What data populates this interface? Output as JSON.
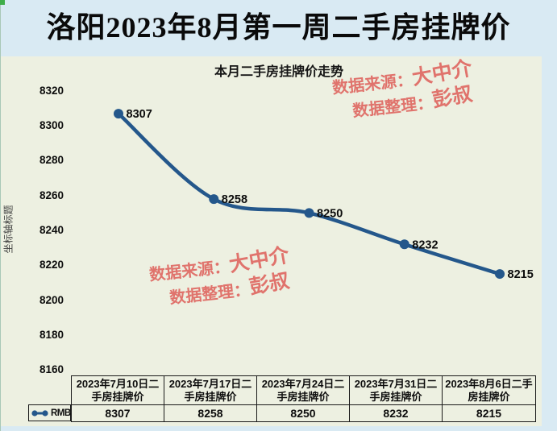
{
  "page": {
    "main_title": "洛阳2023年8月第一周二手房挂牌价"
  },
  "watermark": {
    "source_label": "数据来源：",
    "source_value": "大中介",
    "editor_label": "数据整理：",
    "editor_value": "彭叔"
  },
  "chart_data": {
    "type": "line",
    "title": "本月二手房挂牌价走势",
    "ylabel": "坐标轴标题",
    "xlabel": "",
    "categories": [
      "2023年7月10日二手房挂牌价",
      "2023年7月17日二手房挂牌价",
      "2023年7月24日二手房挂牌价",
      "2023年7月31日二手房挂牌价",
      "2023年8月6日二手房挂牌价"
    ],
    "series": [
      {
        "name": "RMB",
        "values": [
          8307,
          8258,
          8250,
          8232,
          8215
        ]
      }
    ],
    "ylim": [
      8160,
      8320
    ],
    "yticks": [
      "8320",
      "8300",
      "8280",
      "8260",
      "8240",
      "8220",
      "8200",
      "8180",
      "8160"
    ],
    "grid": false,
    "legend_position": "bottom-left",
    "smooth_line": true,
    "data_labels": true
  },
  "table": {
    "headers": [
      "2023年7月10日二手房挂牌价",
      "2023年7月17日二手房挂牌价",
      "2023年7月24日二手房挂牌价",
      "2023年7月31日二手房挂牌价",
      "2023年8月6日二手房挂牌价"
    ],
    "values": [
      "8307",
      "8258",
      "8250",
      "8232",
      "8215"
    ],
    "legend_label": "RMB"
  },
  "colors": {
    "page_background": "#D9EAF3",
    "panel_background": "#EDF0E1",
    "line_color": "#24578B",
    "watermark_color": "#E0736C",
    "title_color": "#0A0A0A",
    "corner_accent_green": "#3FAE49"
  }
}
